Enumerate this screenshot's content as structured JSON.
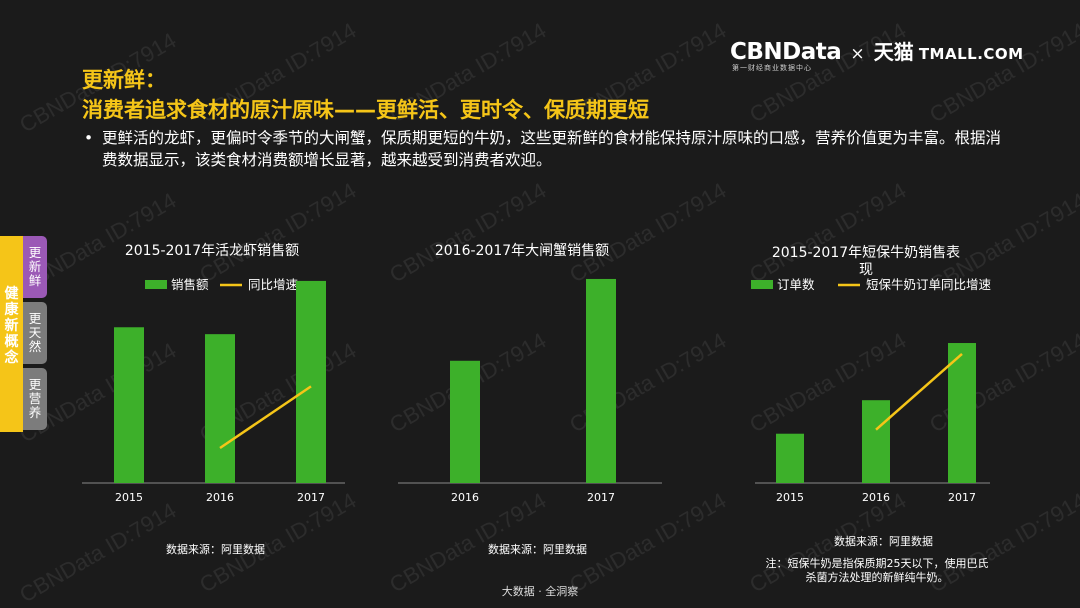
{
  "header": {
    "title_line1": "更新鲜：",
    "title_line2": "消费者追求食材的原汁原味——更鲜活、更时令、保质期更短",
    "bullet_marker": "•",
    "bullet_text": "更鲜活的龙虾，更偏时令季节的大闸蟹，保质期更短的牛奶，这些更新鲜的食材能保持原汁原味的口感，营养价值更为丰富。根据消费数据显示，该类食材消费额增长显著，越来越受到消费者欢迎。"
  },
  "logo": {
    "brand": "CBNData",
    "brand_sub": "第一财经商业数据中心",
    "cross": "×",
    "partner_cn": "天猫",
    "partner_en": "TMALL.COM"
  },
  "sidebar": {
    "label": "健康新概念",
    "tabs": [
      {
        "label": "更新鲜",
        "active": true
      },
      {
        "label": "更天然",
        "active": false
      },
      {
        "label": "更营养",
        "active": false
      }
    ]
  },
  "colors": {
    "bar": "#3db02a",
    "line": "#f5c518",
    "accent": "#f5c518",
    "bg": "#1b1b1b"
  },
  "chart_data": [
    {
      "type": "bar",
      "title": "2015-2017年活龙虾销售额",
      "categories": [
        "2015",
        "2016",
        "2017"
      ],
      "series": [
        {
          "name": "销售额",
          "values": [
            158,
            151,
            205
          ]
        }
      ],
      "line_series": {
        "name": "同比增速",
        "points": [
          {
            "x": "2016",
            "value": 0.1
          },
          {
            "x": "2017",
            "value": 0.98
          }
        ]
      },
      "ylim": [
        0,
        210
      ],
      "source": "数据来源：阿里数据"
    },
    {
      "type": "bar",
      "title": "2016-2017年大闸蟹销售额",
      "categories": [
        "2016",
        "2017"
      ],
      "series": [
        {
          "values": [
            124,
            207
          ]
        }
      ],
      "ylim": [
        0,
        210
      ],
      "source": "数据来源：阿里数据"
    },
    {
      "type": "bar",
      "title": "2015-2017年短保牛奶销售表现",
      "categories": [
        "2015",
        "2016",
        "2017"
      ],
      "series": [
        {
          "name": "订单数",
          "values": [
            50,
            84,
            142
          ]
        }
      ],
      "line_series": {
        "name": "短保牛奶订单同比增速",
        "points": [
          {
            "x": "2016",
            "value": 0.05
          },
          {
            "x": "2017",
            "value": 0.92
          }
        ]
      },
      "ylim": [
        0,
        210
      ],
      "source": "数据来源：阿里数据",
      "note": "注：短保牛奶是指保质期25天以下，使用巴氏杀菌方法处理的新鲜纯牛奶。"
    }
  ],
  "footer": {
    "text": "大数据 · 全洞察"
  },
  "watermark": "CBNData ID:7914"
}
